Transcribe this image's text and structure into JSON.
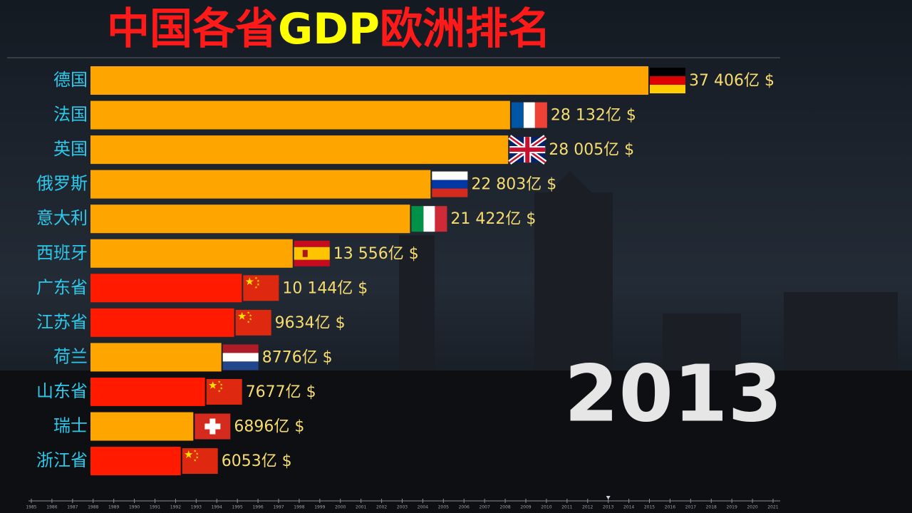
{
  "chart_data": {
    "type": "bar",
    "orientation": "horizontal",
    "title": [
      "中国各省",
      "GDP",
      "欧洲排名"
    ],
    "title_colors": [
      "#ff1a1a",
      "#ffff00",
      "#ff1a1a"
    ],
    "categories": [
      "德国",
      "法国",
      "英国",
      "俄罗斯",
      "意大利",
      "西班牙",
      "广东省",
      "江苏省",
      "荷兰",
      "山东省",
      "瑞士",
      "浙江省"
    ],
    "values": [
      37406,
      28132,
      28005,
      22803,
      21422,
      13556,
      10144,
      9634,
      8776,
      7677,
      6896,
      6053
    ],
    "value_labels": [
      "37 406亿 $",
      "28 132亿 $",
      "28 005亿 $",
      "22 803亿 $",
      "21 422亿 $",
      "13 556亿 $",
      "10 144亿 $",
      "9634亿 $",
      "8776亿 $",
      "7677亿 $",
      "6896亿 $",
      "6053亿 $"
    ],
    "colors": [
      "#ffa500",
      "#ffa500",
      "#ffa500",
      "#ffa500",
      "#ffa500",
      "#ffa500",
      "#ff1a00",
      "#ff1a00",
      "#ffa500",
      "#ff1a00",
      "#ffa500",
      "#ff1a00"
    ],
    "year": 2013,
    "timeline": [
      1985,
      1986,
      1987,
      1988,
      1989,
      1990,
      1991,
      1992,
      1993,
      1994,
      1995,
      1996,
      1997,
      1998,
      1999,
      2000,
      2001,
      2002,
      2003,
      2004,
      2005,
      2006,
      2007,
      2008,
      2009,
      2010,
      2011,
      2012,
      2013,
      2014,
      2015,
      2016,
      2017,
      2018,
      2019,
      2020,
      2021
    ]
  }
}
